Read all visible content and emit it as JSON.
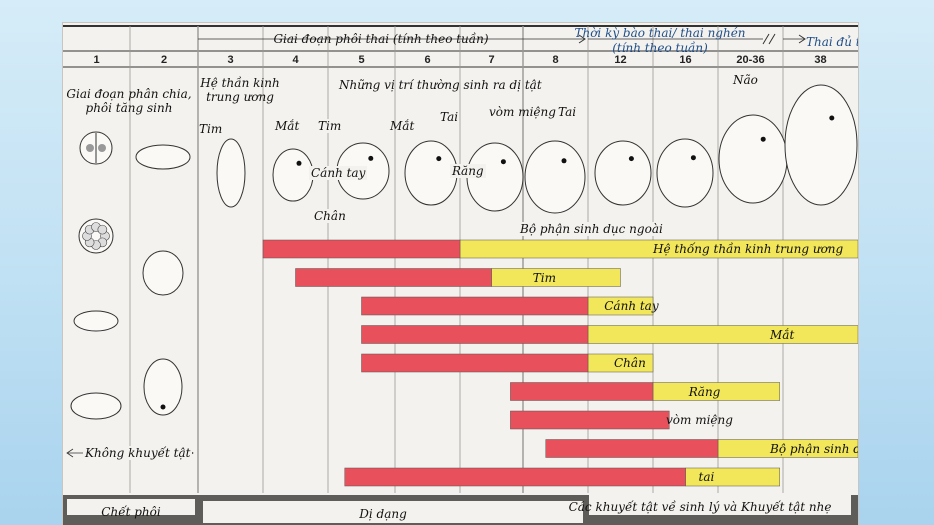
{
  "colors": {
    "critical": "#e8505b",
    "minor": "#f2e65a",
    "grid": "#9a9892",
    "footer": "#5e5d5a",
    "paper": "#f4f2ee"
  },
  "header": {
    "embryonic_period": "Giai đoạn phôi thai (tính theo tuần)",
    "fetal_period": "Thời kỳ bào thai/ thai nghén",
    "fetal_period_sub": "(tính theo tuần)",
    "full_term": "Thai đủ tháng"
  },
  "weeks": [
    "1",
    "2",
    "3",
    "4",
    "5",
    "6",
    "7",
    "8",
    "12",
    "16",
    "20-36",
    "38"
  ],
  "stage_labels": {
    "cleavage": "Giai đoạn phân chia, phôi tăng sinh",
    "cns": "Hệ thần kinh trung ương",
    "sites": "Những vị trí thường sinh ra dị tật",
    "heart_1": "Tim",
    "eye_1": "Mắt",
    "heart_2": "Tim",
    "arm": "Cánh tay",
    "leg": "Chân",
    "eye_2": "Mắt",
    "ear_1": "Tai",
    "teeth": "Răng",
    "palate": "vòm miệng",
    "ear_2": "Tai",
    "brain": "Não",
    "genitalia": "Bộ phận sinh dục ngoài"
  },
  "no_defect": "Không khuyết tật",
  "bars": [
    {
      "label": "Hệ thống thần kinh trung ương",
      "red": [
        3.0,
        6.0
      ],
      "yellow": [
        6.0,
        12.0
      ],
      "label_at": 9.0
    },
    {
      "label": "Tim",
      "red": [
        3.5,
        6.5
      ],
      "yellow": [
        6.5,
        8.5
      ],
      "label_at": 7.15
    },
    {
      "label": "Cánh tay",
      "red": [
        4.5,
        8.0
      ],
      "yellow": [
        8.0,
        9.0
      ],
      "label_at": 8.25
    },
    {
      "label": "Mắt",
      "red": [
        4.5,
        8.0
      ],
      "yellow": [
        8.0,
        12.0
      ],
      "label_at": 10.8
    },
    {
      "label": "Chân",
      "red": [
        4.5,
        8.0
      ],
      "yellow": [
        8.0,
        9.0
      ],
      "label_at": 8.4
    },
    {
      "label": "Răng",
      "red": [
        6.8,
        9.0
      ],
      "yellow": [
        9.0,
        10.95
      ],
      "label_at": 9.55
    },
    {
      "label": "vòm miệng",
      "red": [
        6.8,
        9.25
      ],
      "yellow": [
        9.25,
        9.25
      ],
      "label_at": 9.2
    },
    {
      "label": "Bộ phận sinh dục ngoài",
      "red": [
        7.35,
        10.0
      ],
      "yellow": [
        10.0,
        12.0
      ],
      "label_at": 10.8
    },
    {
      "label": "tai",
      "red": [
        4.25,
        9.5
      ],
      "yellow": [
        9.5,
        10.95
      ],
      "label_at": 9.7
    }
  ],
  "footer": {
    "death": "Chết phôi",
    "malformation": "Dị dạng",
    "minor": "Các khuyết tật về sinh lý và Khuyết tật nhẹ"
  }
}
